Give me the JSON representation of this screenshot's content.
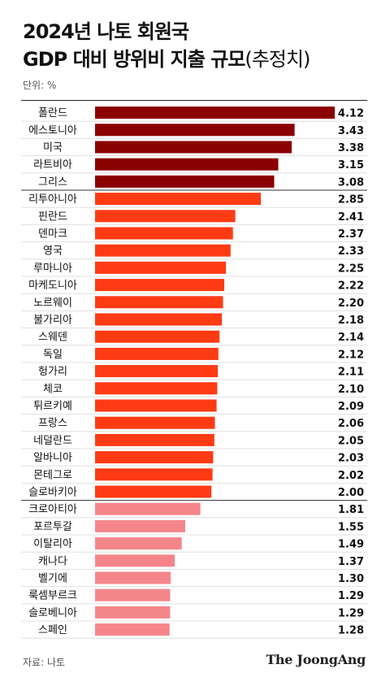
{
  "header": {
    "title_line1": "2024년 나토 회원국",
    "title_line2_main": "GDP 대비 방위비 지출 규모",
    "title_line2_sub": "(추정치)",
    "unit": "단위: %"
  },
  "footer": {
    "source": "자료: 나토",
    "logo": "The JoongAng"
  },
  "colors": {
    "tier1": "#8b0000",
    "tier2": "#ff3b14",
    "tier3": "#f4868a",
    "text": "#111111"
  },
  "chart_data": {
    "type": "bar",
    "orientation": "horizontal",
    "categories": [
      "폴란드",
      "에스토니아",
      "미국",
      "라트비아",
      "그리스",
      "리투아니아",
      "핀란드",
      "덴마크",
      "영국",
      "루마니아",
      "마케도니아",
      "노르웨이",
      "불가리아",
      "스웨덴",
      "독일",
      "헝가리",
      "체코",
      "튀르키예",
      "프랑스",
      "네덜란드",
      "알바니아",
      "몬테그로",
      "슬로바키아",
      "크로아티아",
      "포르투갈",
      "이탈리아",
      "캐나다",
      "벨기에",
      "룩셈부르크",
      "슬로베니아",
      "스페인"
    ],
    "values": [
      4.12,
      3.43,
      3.38,
      3.15,
      3.08,
      2.85,
      2.41,
      2.37,
      2.33,
      2.25,
      2.22,
      2.2,
      2.18,
      2.14,
      2.12,
      2.11,
      2.1,
      2.09,
      2.06,
      2.05,
      2.03,
      2.02,
      2.0,
      1.81,
      1.55,
      1.49,
      1.37,
      1.3,
      1.29,
      1.29,
      1.28
    ],
    "value_labels": [
      "4.12",
      "3.43",
      "3.38",
      "3.15",
      "3.08",
      "2.85",
      "2.41",
      "2.37",
      "2.33",
      "2.25",
      "2.22",
      "2.20",
      "2.18",
      "2.14",
      "2.12",
      "2.11",
      "2.10",
      "2.09",
      "2.06",
      "2.05",
      "2.03",
      "2.02",
      "2.00",
      "1.81",
      "1.55",
      "1.49",
      "1.37",
      "1.30",
      "1.29",
      "1.29",
      "1.28"
    ],
    "groups": [
      {
        "from": 0,
        "to": 4,
        "color_key": "tier1"
      },
      {
        "from": 5,
        "to": 22,
        "color_key": "tier2"
      },
      {
        "from": 23,
        "to": 30,
        "color_key": "tier3"
      }
    ],
    "xlim": [
      0,
      4.12
    ]
  }
}
